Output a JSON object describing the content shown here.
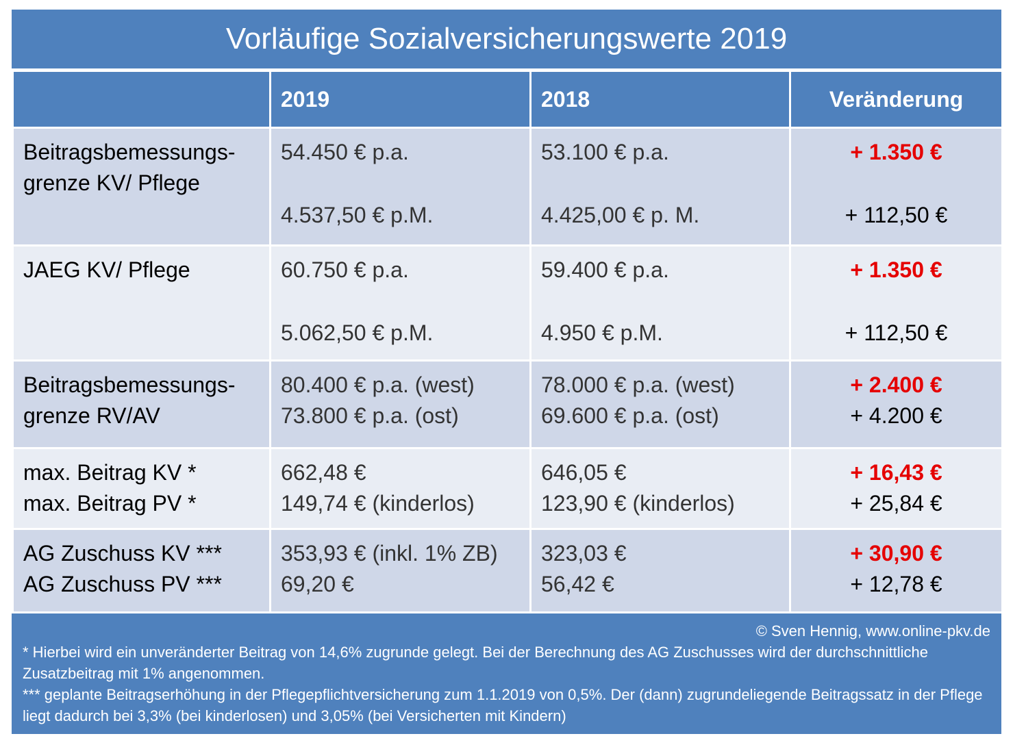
{
  "title": "Vorläufige Sozialversicherungswerte 2019",
  "header": {
    "col0": "",
    "col1": "2019",
    "col2": "2018",
    "col3": "Veränderung"
  },
  "rows": [
    {
      "label": [
        "Beitragsbemessungs-",
        "grenze KV/ Pflege"
      ],
      "v2019": [
        "54.450 € p.a.",
        "4.537,50 € p.M."
      ],
      "v2018": [
        "53.100 € p.a.",
        "4.425,00 € p. M."
      ],
      "change": [
        "+ 1.350 €",
        "+ 112,50 €"
      ]
    },
    {
      "label": [
        "JAEG KV/ Pflege"
      ],
      "v2019": [
        "60.750 € p.a.",
        "5.062,50 € p.M."
      ],
      "v2018": [
        "59.400 € p.a.",
        "4.950 € p.M."
      ],
      "change": [
        "+ 1.350 €",
        "+ 112,50 €"
      ]
    },
    {
      "label": [
        "Beitragsbemessungs-",
        "grenze RV/AV"
      ],
      "v2019": [
        "80.400 € p.a. (west)",
        "73.800 € p.a. (ost)"
      ],
      "v2018": [
        "78.000 € p.a. (west)",
        "69.600 € p.a. (ost)"
      ],
      "change": [
        "+ 2.400 €",
        "+ 4.200 €"
      ]
    },
    {
      "label": [
        "max. Beitrag KV *",
        "max. Beitrag PV *"
      ],
      "v2019": [
        "662,48 €",
        "149,74 € (kinderlos)"
      ],
      "v2018": [
        "646,05 €",
        "123,90 € (kinderlos)"
      ],
      "change": [
        "+ 16,43 €",
        "+ 25,84 €"
      ]
    },
    {
      "label": [
        "AG Zuschuss KV ***",
        "AG Zuschuss PV ***"
      ],
      "v2019": [
        "353,93 € (inkl. 1% ZB)",
        "69,20 €"
      ],
      "v2018": [
        "323,03 €",
        "56,42 €"
      ],
      "change": [
        "+ 30,90 €",
        "+ 12,78 €"
      ]
    }
  ],
  "footer": {
    "copyright": "© Sven Hennig, www.online-pkv.de",
    "note1": "* Hierbei wird ein unveränderter Beitrag von 14,6% zugrunde gelegt. Bei der Berechnung des AG Zuschusses wird der durchschnittliche Zusatzbeitrag mit 1% angenommen.",
    "note2": "*** geplante Beitragserhöhung in der Pflegepflichtversicherung zum 1.1.2019 von 0,5%. Der (dann) zugrundeliegende Beitragssatz in der Pflege liegt dadurch bei 3,3% (bei kinderlosen) und 3,05% (bei Versicherten mit Kindern)"
  },
  "colors": {
    "header_blue": "#4f81bd",
    "row_dark": "#cfd7e8",
    "row_light": "#e9edf4",
    "highlight_red": "#e50000"
  }
}
